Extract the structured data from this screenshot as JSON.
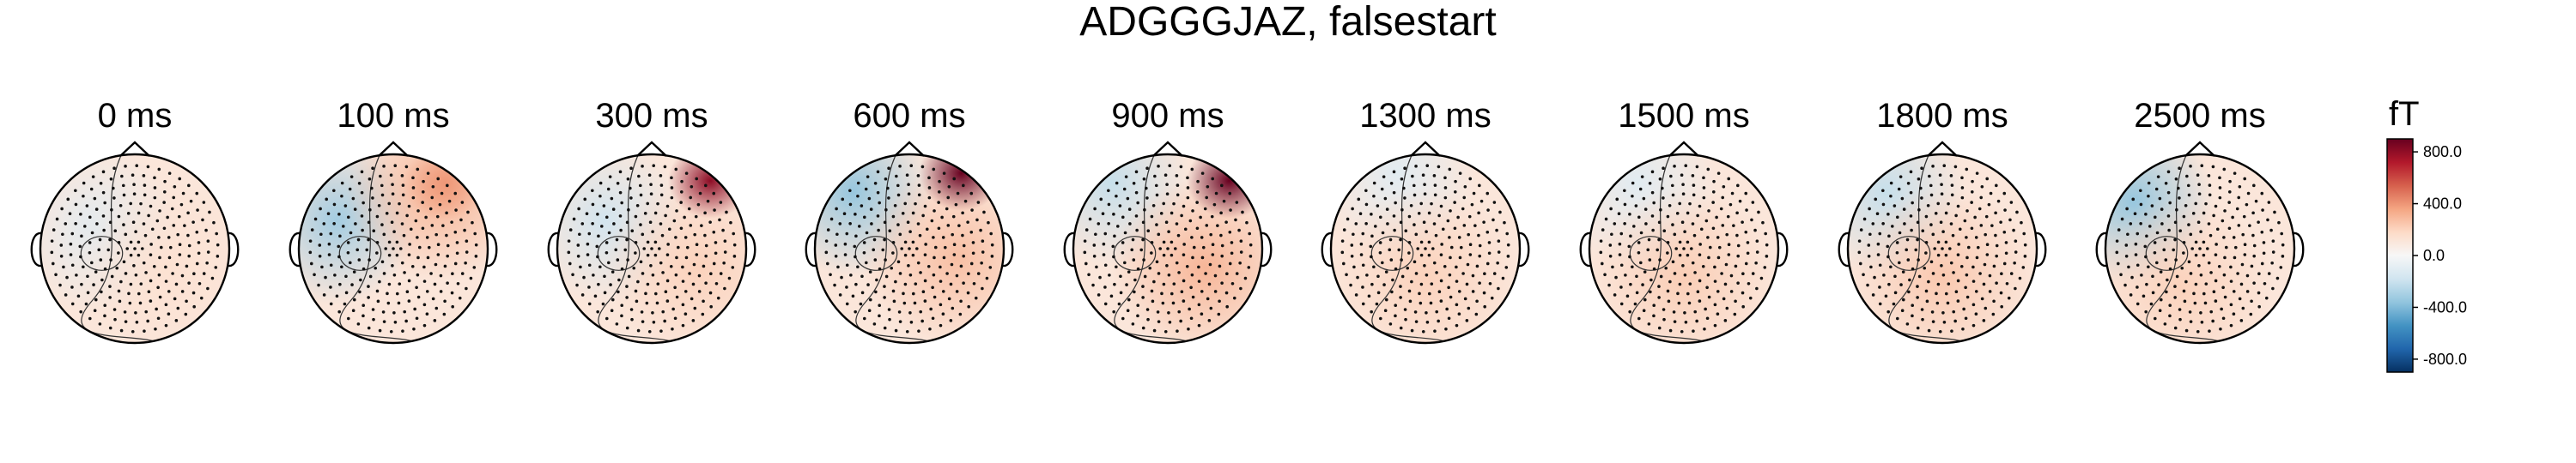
{
  "figure": {
    "title": "ADGGGJAZ, falsestart"
  },
  "chart_data": {
    "type": "heatmap",
    "title": "ADGGGJAZ, falsestart",
    "panels": [
      {
        "time_label": "0 ms"
      },
      {
        "time_label": "100 ms"
      },
      {
        "time_label": "300 ms"
      },
      {
        "time_label": "600 ms"
      },
      {
        "time_label": "900 ms"
      },
      {
        "time_label": "1300 ms"
      },
      {
        "time_label": "1500 ms"
      },
      {
        "time_label": "1800 ms"
      },
      {
        "time_label": "2500 ms"
      }
    ],
    "colorbar": {
      "unit": "fT",
      "ticks": [
        "800.0",
        "400.0",
        "0.0",
        "-400.0",
        "-800.0"
      ],
      "range": [
        -900,
        900
      ],
      "colormap": [
        "#053061",
        "#2166ac",
        "#4393c3",
        "#92c5de",
        "#d1e5f0",
        "#f7f7f7",
        "#fddbc7",
        "#f4a582",
        "#d6604d",
        "#b2182b",
        "#67001f"
      ]
    }
  }
}
